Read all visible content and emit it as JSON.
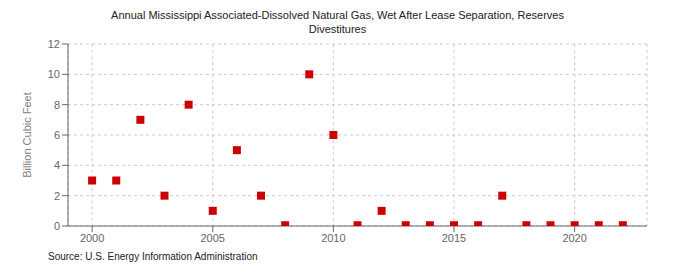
{
  "chart_data": {
    "type": "scatter",
    "title": "Annual Mississippi Associated-Dissolved Natural Gas, Wet After Lease Separation, Reserves\nDivestitures",
    "ylabel": "Billion Cubic Feet",
    "source": "Source: U.S. Energy Information Administration",
    "x": [
      2000,
      2001,
      2002,
      2003,
      2004,
      2005,
      2006,
      2007,
      2008,
      2009,
      2010,
      2011,
      2012,
      2013,
      2014,
      2015,
      2016,
      2017,
      2018,
      2019,
      2020,
      2021,
      2022
    ],
    "values": [
      3.0,
      3.0,
      7.0,
      2.0,
      8.0,
      1.0,
      5.0,
      2.0,
      0.05,
      10.0,
      6.0,
      0.05,
      1.0,
      0.05,
      0.05,
      0.05,
      0.05,
      2.0,
      0.05,
      0.05,
      0.05,
      0.05,
      0.05
    ],
    "color": "#cc0000",
    "marker": "square",
    "xlim": [
      1999,
      2023
    ],
    "ylim": [
      0,
      12
    ],
    "xticks": [
      2000,
      2005,
      2010,
      2015,
      2020
    ],
    "yticks": [
      0,
      2,
      4,
      6,
      8,
      10,
      12
    ],
    "grid": true
  }
}
